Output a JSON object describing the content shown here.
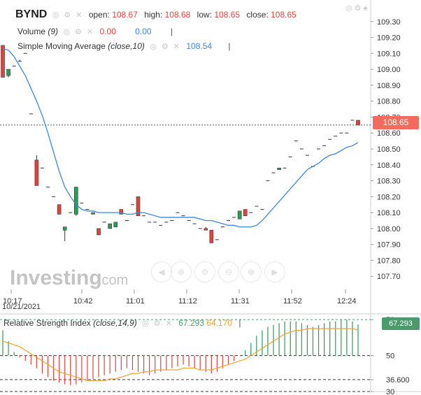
{
  "ticker": "BYND",
  "ohlc": {
    "open_label": "open:",
    "open": "108.67",
    "high_label": "high:",
    "high": "108.68",
    "low_label": "low:",
    "low": "108.65",
    "close_label": "close:",
    "close": "108.65"
  },
  "volume": {
    "label": "Volume",
    "param": "(9)",
    "v1": "0.00",
    "v2": "0.00"
  },
  "sma": {
    "label": "Simple Moving Average",
    "param": "(close,10)",
    "value": "108.54"
  },
  "rsi": {
    "label": "Relative Strength Index",
    "param": "(close,14,9)",
    "value": "67.293",
    "signal": "64.170",
    "badge": "67.293"
  },
  "price_badge": "108.65",
  "watermark": {
    "brand": "Investing",
    "suffix": ".com"
  },
  "date_label": "10/21/2021",
  "colors": {
    "up": "#2a9d57",
    "down": "#e0433e",
    "sma": "#3d85d8",
    "signal": "#f0a330",
    "badge": "#f36b5f",
    "rsi_badge": "#4b9a6b"
  },
  "chart_data": [
    {
      "type": "candlestick",
      "ylim": [
        107.6,
        109.4
      ],
      "y_ticks": [
        "109.30",
        "109.20",
        "109.10",
        "109.00",
        "108.90",
        "108.80",
        "108.70",
        "108.60",
        "108.50",
        "108.40",
        "108.30",
        "108.20",
        "108.10",
        "108.00",
        "107.90",
        "107.80",
        "107.70"
      ],
      "x_ticks": [
        "10:17",
        "10:42",
        "11:01",
        "11:12",
        "11:31",
        "11:52",
        "12:24"
      ],
      "candles": [
        {
          "o": 109.15,
          "h": 109.15,
          "l": 108.95,
          "c": 108.95
        },
        {
          "o": 108.96,
          "h": 109.0,
          "l": 108.95,
          "c": 109.0
        },
        {
          "o": 109.02,
          "h": 109.02,
          "l": 109.02,
          "c": 109.02
        },
        {
          "o": 109.05,
          "h": 109.06,
          "l": 109.05,
          "c": 109.05
        },
        {
          "o": 109.1,
          "h": 109.1,
          "l": 109.1,
          "c": 109.1
        },
        {
          "o": 108.72,
          "h": 108.72,
          "l": 108.72,
          "c": 108.72
        },
        {
          "o": 108.43,
          "h": 108.46,
          "l": 108.27,
          "c": 108.27
        },
        {
          "o": 108.38,
          "h": 108.38,
          "l": 108.38,
          "c": 108.38
        },
        {
          "o": 108.26,
          "h": 108.26,
          "l": 108.26,
          "c": 108.26
        },
        {
          "o": 108.2,
          "h": 108.2,
          "l": 108.2,
          "c": 108.2
        },
        {
          "o": 108.15,
          "h": 108.15,
          "l": 108.09,
          "c": 108.09
        },
        {
          "o": 107.99,
          "h": 108.01,
          "l": 107.92,
          "c": 108.01
        },
        {
          "o": 108.1,
          "h": 108.1,
          "l": 108.1,
          "c": 108.1
        },
        {
          "o": 108.09,
          "h": 108.26,
          "l": 108.08,
          "c": 108.26
        },
        {
          "o": 108.16,
          "h": 108.16,
          "l": 108.16,
          "c": 108.16
        },
        {
          "o": 108.12,
          "h": 108.12,
          "l": 108.12,
          "c": 108.12
        },
        {
          "o": 108.09,
          "h": 108.1,
          "l": 108.09,
          "c": 108.1
        },
        {
          "o": 108.0,
          "h": 108.0,
          "l": 107.96,
          "c": 107.96
        },
        {
          "o": 108.04,
          "h": 108.04,
          "l": 108.04,
          "c": 108.04
        },
        {
          "o": 108.0,
          "h": 108.03,
          "l": 108.0,
          "c": 108.03
        },
        {
          "o": 108.01,
          "h": 108.04,
          "l": 108.01,
          "c": 108.04
        },
        {
          "o": 108.12,
          "h": 108.12,
          "l": 108.09,
          "c": 108.09
        },
        {
          "o": 108.05,
          "h": 108.05,
          "l": 108.05,
          "c": 108.05
        },
        {
          "o": 108.15,
          "h": 108.15,
          "l": 108.15,
          "c": 108.15
        },
        {
          "o": 108.2,
          "h": 108.2,
          "l": 108.08,
          "c": 108.08
        },
        {
          "o": 108.08,
          "h": 108.08,
          "l": 108.08,
          "c": 108.08
        },
        {
          "o": 108.04,
          "h": 108.04,
          "l": 108.04,
          "c": 108.04
        },
        {
          "o": 108.04,
          "h": 108.04,
          "l": 108.04,
          "c": 108.04
        },
        {
          "o": 108.02,
          "h": 108.02,
          "l": 108.02,
          "c": 108.02
        },
        {
          "o": 108.04,
          "h": 108.04,
          "l": 108.04,
          "c": 108.04
        },
        {
          "o": 108.05,
          "h": 108.05,
          "l": 108.05,
          "c": 108.05
        },
        {
          "o": 108.1,
          "h": 108.1,
          "l": 108.1,
          "c": 108.1
        },
        {
          "o": 108.08,
          "h": 108.08,
          "l": 108.08,
          "c": 108.08
        },
        {
          "o": 108.05,
          "h": 108.05,
          "l": 108.05,
          "c": 108.05
        },
        {
          "o": 108.03,
          "h": 108.03,
          "l": 108.03,
          "c": 108.03
        },
        {
          "o": 108.0,
          "h": 108.0,
          "l": 108.0,
          "c": 108.0
        },
        {
          "o": 108.0,
          "h": 108.01,
          "l": 107.99,
          "c": 107.99
        },
        {
          "o": 107.99,
          "h": 107.99,
          "l": 107.91,
          "c": 107.91
        },
        {
          "o": 107.93,
          "h": 107.93,
          "l": 107.93,
          "c": 107.93
        },
        {
          "o": 108.01,
          "h": 108.01,
          "l": 108.01,
          "c": 108.01
        },
        {
          "o": 108.05,
          "h": 108.05,
          "l": 108.05,
          "c": 108.05
        },
        {
          "o": 108.07,
          "h": 108.07,
          "l": 108.07,
          "c": 108.07
        },
        {
          "o": 108.06,
          "h": 108.11,
          "l": 108.06,
          "c": 108.11
        },
        {
          "o": 108.12,
          "h": 108.12,
          "l": 108.08,
          "c": 108.08
        },
        {
          "o": 108.1,
          "h": 108.1,
          "l": 108.1,
          "c": 108.1
        },
        {
          "o": 108.14,
          "h": 108.14,
          "l": 108.14,
          "c": 108.14
        },
        {
          "o": 108.12,
          "h": 108.12,
          "l": 108.12,
          "c": 108.12
        },
        {
          "o": 108.3,
          "h": 108.3,
          "l": 108.3,
          "c": 108.3
        },
        {
          "o": 108.35,
          "h": 108.35,
          "l": 108.35,
          "c": 108.35
        },
        {
          "o": 108.37,
          "h": 108.38,
          "l": 108.37,
          "c": 108.38
        },
        {
          "o": 108.38,
          "h": 108.38,
          "l": 108.38,
          "c": 108.38
        },
        {
          "o": 108.45,
          "h": 108.45,
          "l": 108.45,
          "c": 108.45
        },
        {
          "o": 108.55,
          "h": 108.55,
          "l": 108.55,
          "c": 108.55
        },
        {
          "o": 108.5,
          "h": 108.5,
          "l": 108.5,
          "c": 108.5
        },
        {
          "o": 108.46,
          "h": 108.46,
          "l": 108.46,
          "c": 108.46
        },
        {
          "o": 108.39,
          "h": 108.39,
          "l": 108.39,
          "c": 108.39
        },
        {
          "o": 108.5,
          "h": 108.5,
          "l": 108.5,
          "c": 108.5
        },
        {
          "o": 108.52,
          "h": 108.52,
          "l": 108.52,
          "c": 108.52
        },
        {
          "o": 108.56,
          "h": 108.56,
          "l": 108.56,
          "c": 108.56
        },
        {
          "o": 108.58,
          "h": 108.58,
          "l": 108.58,
          "c": 108.58
        },
        {
          "o": 108.6,
          "h": 108.6,
          "l": 108.6,
          "c": 108.6
        },
        {
          "o": 108.6,
          "h": 108.6,
          "l": 108.6,
          "c": 108.6
        },
        {
          "o": 108.68,
          "h": 108.68,
          "l": 108.68,
          "c": 108.68
        },
        {
          "o": 108.68,
          "h": 108.68,
          "l": 108.65,
          "c": 108.65
        }
      ],
      "sma": [
        109.13,
        109.12,
        109.08,
        109.02,
        108.96,
        108.88,
        108.8,
        108.71,
        108.6,
        108.48,
        108.36,
        108.26,
        108.2,
        108.15,
        108.12,
        108.11,
        108.11,
        108.1,
        108.1,
        108.1,
        108.1,
        108.1,
        108.09,
        108.09,
        108.1,
        108.1,
        108.09,
        108.08,
        108.07,
        108.07,
        108.07,
        108.07,
        108.07,
        108.07,
        108.07,
        108.06,
        108.05,
        108.05,
        108.04,
        108.03,
        108.02,
        108.02,
        108.01,
        108.01,
        108.01,
        108.02,
        108.05,
        108.09,
        108.13,
        108.17,
        108.21,
        108.25,
        108.29,
        108.33,
        108.37,
        108.39,
        108.41,
        108.44,
        108.46,
        108.47,
        108.49,
        108.51,
        108.52,
        108.54
      ]
    },
    {
      "type": "rsi",
      "ylim": [
        30,
        72
      ],
      "y_ticks": [
        "70",
        "50",
        "36.600",
        "30"
      ],
      "levels": [
        70,
        50,
        36.6,
        30
      ],
      "rsi": [
        64,
        58,
        52,
        49,
        47,
        45,
        43,
        40,
        38,
        36,
        35,
        34,
        33.5,
        34,
        35,
        36,
        37,
        38,
        39,
        40,
        41,
        42,
        43,
        42,
        41,
        40,
        39,
        40,
        41,
        42,
        43,
        44,
        45,
        44,
        43,
        42,
        41,
        40,
        41,
        43,
        45,
        47,
        50,
        53,
        57,
        61,
        64,
        66,
        67,
        68,
        69,
        69,
        69,
        68,
        67,
        66,
        67,
        68,
        69,
        69,
        70,
        70,
        69,
        67.3
      ],
      "signal": [
        58,
        57,
        56,
        55,
        53,
        51,
        49,
        47,
        45,
        43,
        41,
        40,
        39,
        38,
        37,
        36,
        36,
        36,
        36,
        37,
        37,
        38,
        39,
        40,
        40,
        41,
        41,
        42,
        42,
        42,
        42,
        42,
        43,
        43,
        43,
        42,
        42,
        42,
        43,
        44,
        45,
        46,
        47,
        48,
        50,
        52,
        54,
        56,
        58,
        60,
        62,
        63,
        64,
        64,
        65,
        65,
        65,
        65,
        65,
        65,
        65,
        65,
        65,
        64.17
      ]
    }
  ]
}
